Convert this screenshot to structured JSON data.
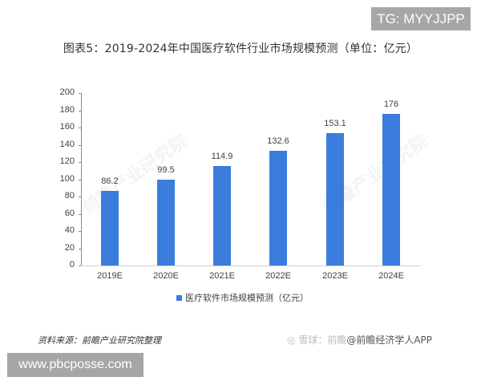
{
  "badges": {
    "tg": "TG: MYYJJPP",
    "url": "www.pbcposse.com"
  },
  "footer": {
    "source": "资料来源：前瞻产业研究院整理",
    "xueqiu_prefix": "雪球：前瞻",
    "xueqiu_account": "@前瞻经济学人APP"
  },
  "colors": {
    "bar": "#3a7ddc",
    "badge_bg": "#a6a6a6"
  },
  "chart_data": {
    "type": "bar",
    "title": "图表5：2019-2024年中国医疗软件行业市场规模预测（单位：亿元）",
    "categories": [
      "2019E",
      "2020E",
      "2021E",
      "2022E",
      "2023E",
      "2024E"
    ],
    "series": [
      {
        "name": "医疗软件市场规模预测（亿元）",
        "values": [
          86.2,
          99.5,
          114.9,
          132.6,
          153.1,
          176
        ]
      }
    ],
    "value_labels": [
      "86.2",
      "99.5",
      "114.9",
      "132.6",
      "153.1",
      "176"
    ],
    "xlabel": "",
    "ylabel": "",
    "ylim": [
      0,
      200
    ],
    "yticks": [
      "0",
      "20",
      "40",
      "60",
      "80",
      "100",
      "120",
      "140",
      "160",
      "180",
      "200"
    ],
    "grid": false,
    "legend_position": "bottom",
    "watermark": "前瞻产业研究院"
  }
}
